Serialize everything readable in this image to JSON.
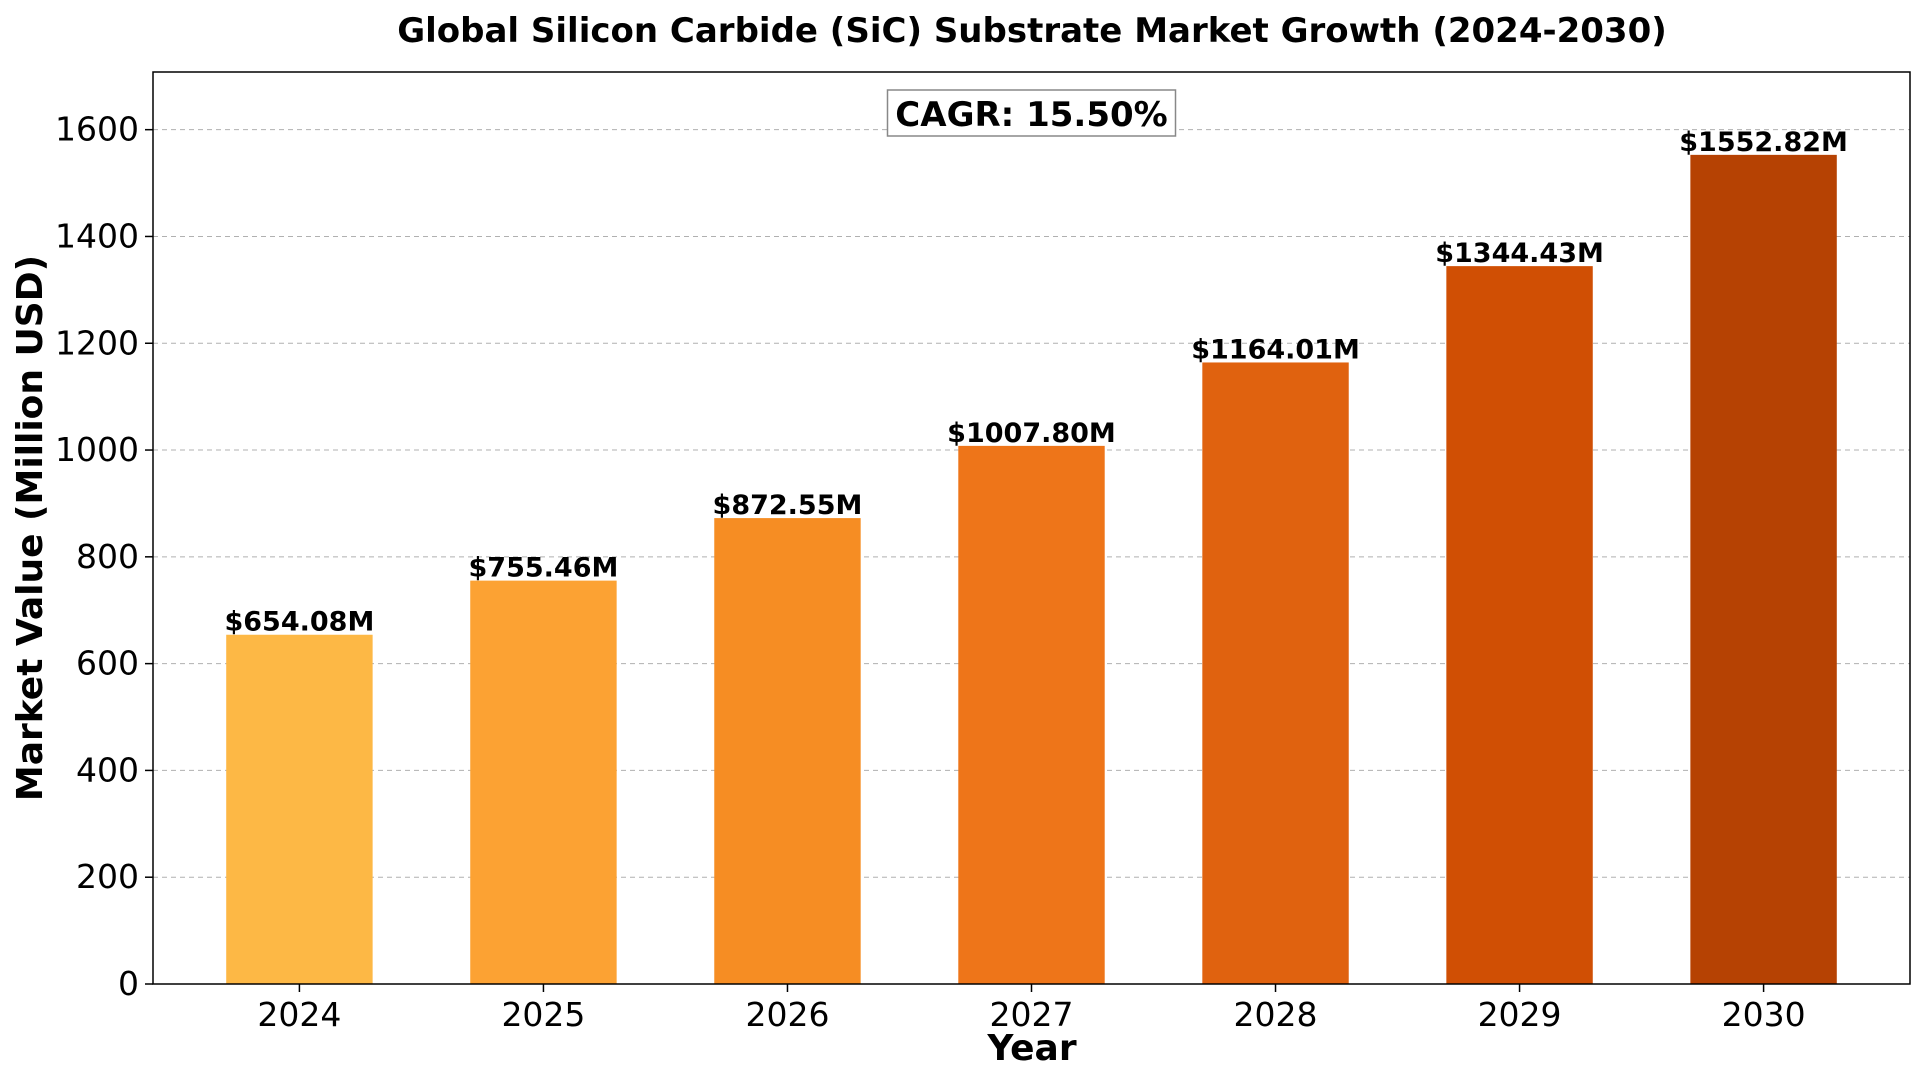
{
  "chart_data": {
    "type": "bar",
    "title": "Global Silicon Carbide (SiC) Substrate Market Growth (2024-2030)",
    "xlabel": "Year",
    "ylabel": "Market Value (Million USD)",
    "categories": [
      "2024",
      "2025",
      "2026",
      "2027",
      "2028",
      "2029",
      "2030"
    ],
    "values": [
      654.08,
      755.46,
      872.55,
      1007.8,
      1164.01,
      1344.43,
      1552.82
    ],
    "value_labels": [
      "$654.08M",
      "$755.46M",
      "$872.55M",
      "$1007.80M",
      "$1164.01M",
      "$1344.43M",
      "$1552.82M"
    ],
    "colors": [
      "#FDB845",
      "#FCA233",
      "#F68D23",
      "#EE7519",
      "#E0620F",
      "#D04F04",
      "#B64203"
    ],
    "ylim": [
      0,
      1708
    ],
    "yticks": [
      0,
      200,
      400,
      600,
      800,
      1000,
      1200,
      1400,
      1600
    ],
    "grid": true,
    "annotation": "CAGR: 15.50%"
  }
}
